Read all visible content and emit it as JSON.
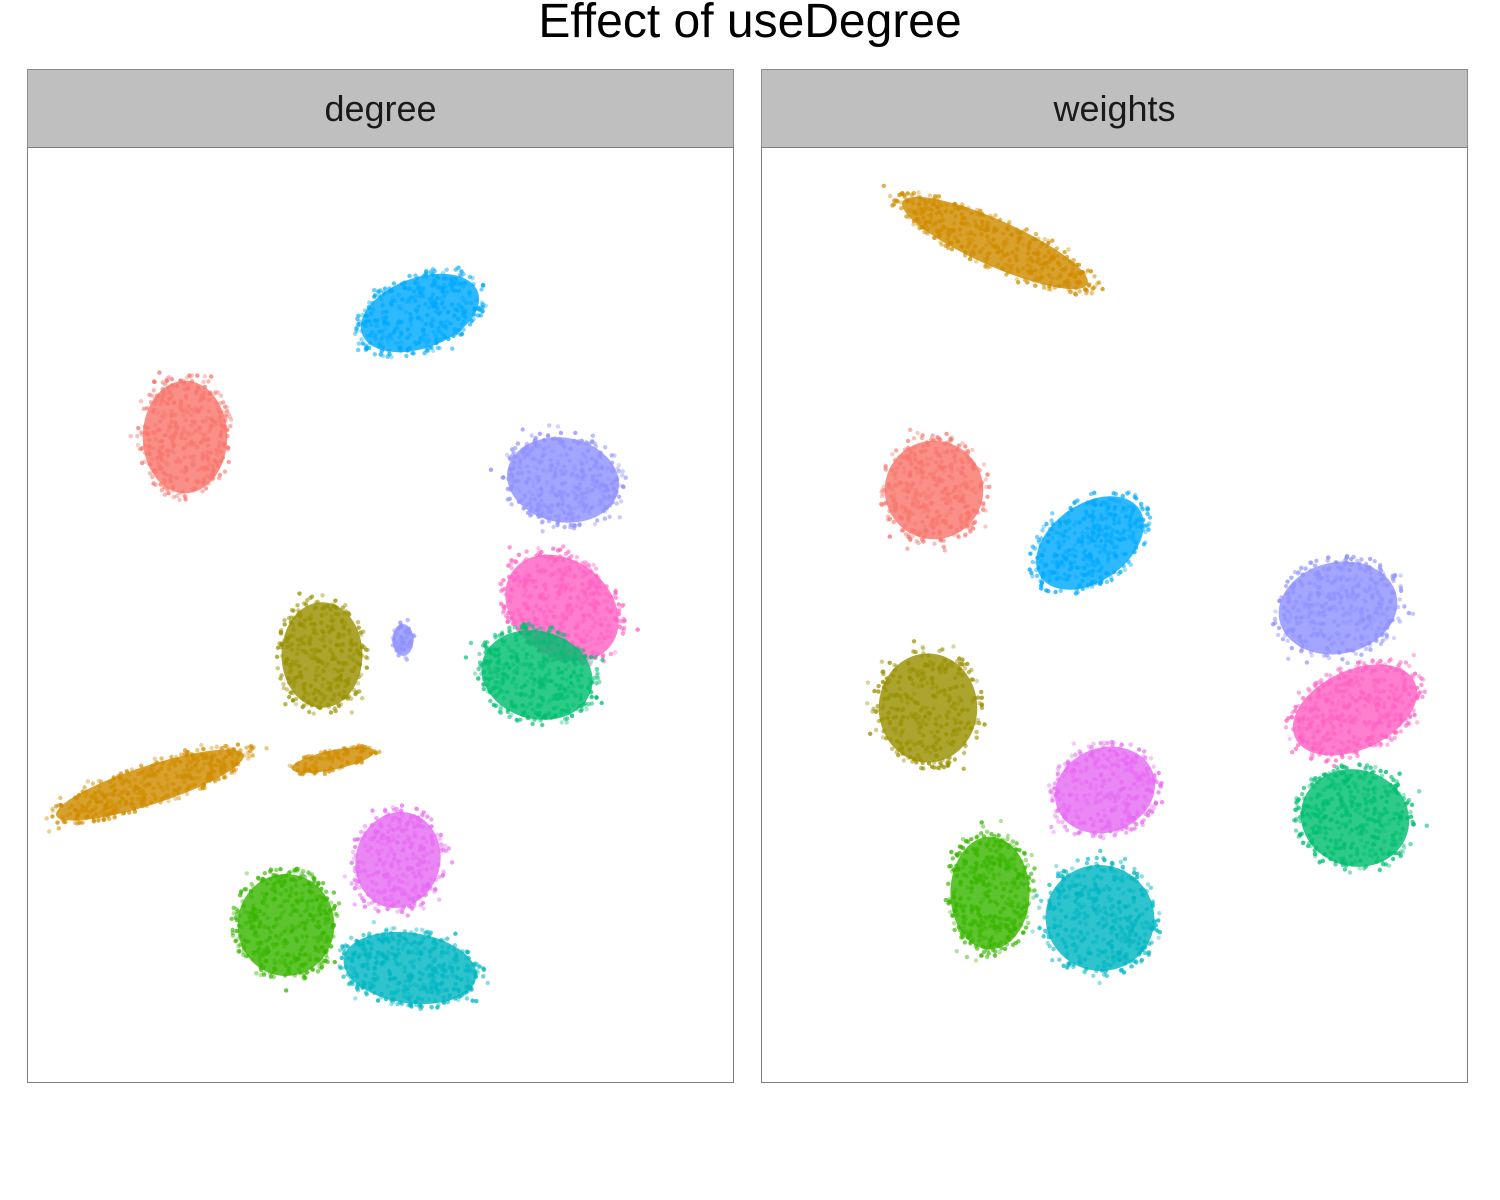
{
  "title": "Effect of useDegree",
  "chart_data": {
    "type": "scatter",
    "title": "Effect of useDegree",
    "xlabel": "",
    "ylabel": "",
    "grid": false,
    "legend": "none",
    "panels": [
      {
        "label": "degree",
        "clusters": [
          {
            "color": "#F8766D",
            "center": [
              185,
              437
            ],
            "radius": [
              48,
              64
            ],
            "angle": 0,
            "count": 380
          },
          {
            "color": "#00A9FF",
            "center": [
              420,
              313
            ],
            "radius": [
              70,
              40
            ],
            "angle": -20,
            "count": 380
          },
          {
            "color": "#8F91FF",
            "center": [
              563,
              480
            ],
            "radius": [
              64,
              48
            ],
            "angle": 10,
            "count": 380
          },
          {
            "color": "#FF61C3",
            "center": [
              562,
              608
            ],
            "radius": [
              70,
              54
            ],
            "angle": 38,
            "count": 400
          },
          {
            "color": "#00BE70",
            "center": [
              537,
              675
            ],
            "radius": [
              64,
              50
            ],
            "angle": 15,
            "count": 400
          },
          {
            "color": "#999000",
            "center": [
              322,
              655
            ],
            "radius": [
              46,
              60
            ],
            "angle": 0,
            "count": 330
          },
          {
            "color": "#8F91FF",
            "center": [
              403,
              640
            ],
            "radius": [
              12,
              18
            ],
            "angle": 0,
            "count": 50
          },
          {
            "color": "#D08C00",
            "center": [
              150,
              785
            ],
            "radius": [
              112,
              22
            ],
            "angle": -18,
            "count": 420
          },
          {
            "color": "#D08C00",
            "center": [
              333,
              760
            ],
            "radius": [
              48,
              11
            ],
            "angle": -12,
            "count": 100
          },
          {
            "color": "#E76BF3",
            "center": [
              398,
              860
            ],
            "radius": [
              48,
              55
            ],
            "angle": 15,
            "count": 330
          },
          {
            "color": "#39B600",
            "center": [
              286,
              925
            ],
            "radius": [
              55,
              58
            ],
            "angle": 0,
            "count": 400
          },
          {
            "color": "#00B6C2",
            "center": [
              410,
              968
            ],
            "radius": [
              76,
              40
            ],
            "angle": 8,
            "count": 400
          }
        ]
      },
      {
        "label": "weights",
        "clusters": [
          {
            "color": "#D08C00",
            "center": [
              995,
              243
            ],
            "radius": [
              115,
              26
            ],
            "angle": 24,
            "count": 430
          },
          {
            "color": "#F8766D",
            "center": [
              934,
              490
            ],
            "radius": [
              56,
              56
            ],
            "angle": 0,
            "count": 380
          },
          {
            "color": "#00A9FF",
            "center": [
              1090,
              543
            ],
            "radius": [
              68,
              44
            ],
            "angle": -35,
            "count": 380
          },
          {
            "color": "#8F91FF",
            "center": [
              1338,
              608
            ],
            "radius": [
              68,
              52
            ],
            "angle": -12,
            "count": 390
          },
          {
            "color": "#FF61C3",
            "center": [
              1355,
              710
            ],
            "radius": [
              75,
              45
            ],
            "angle": -25,
            "count": 400
          },
          {
            "color": "#00BE70",
            "center": [
              1355,
              818
            ],
            "radius": [
              62,
              55
            ],
            "angle": 15,
            "count": 400
          },
          {
            "color": "#999000",
            "center": [
              928,
              708
            ],
            "radius": [
              56,
              62
            ],
            "angle": 0,
            "count": 330
          },
          {
            "color": "#E76BF3",
            "center": [
              1105,
              790
            ],
            "radius": [
              58,
              48
            ],
            "angle": -20,
            "count": 330
          },
          {
            "color": "#39B600",
            "center": [
              990,
              893
            ],
            "radius": [
              45,
              64
            ],
            "angle": 0,
            "count": 400
          },
          {
            "color": "#00B6C2",
            "center": [
              1100,
              918
            ],
            "radius": [
              62,
              60
            ],
            "angle": 18,
            "count": 400
          }
        ]
      }
    ]
  }
}
